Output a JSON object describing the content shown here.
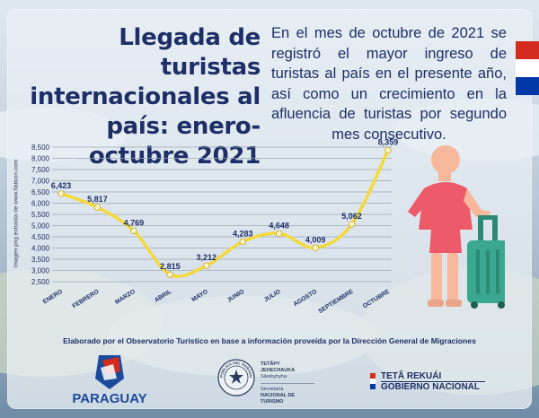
{
  "header": {
    "title": "Llegada de turistas internacionales al país: enero-octubre 2021",
    "description": "En el mes de octubre de 2021 se registró el mayor ingreso de turistas al país en el presente año, así como un crecimiento en la afluencia de turistas por segundo mes consecutivo."
  },
  "image_credit": "Imagen png extraída de www.flaticon.com",
  "chart_data": {
    "type": "line",
    "categories": [
      "ENERO",
      "FEBRERO",
      "MARZO",
      "ABRIL",
      "MAYO",
      "JUNIO",
      "JULIO",
      "AGOSTO",
      "SEPTIEMBRE",
      "OCTUBRE"
    ],
    "values": [
      6423,
      5817,
      4769,
      2815,
      3212,
      4283,
      4648,
      4009,
      5062,
      8359
    ],
    "value_labels": [
      "6,423",
      "5,817",
      "4,769",
      "2,815",
      "3,212",
      "4,283",
      "4,648",
      "4,009",
      "5,062",
      "8,359"
    ],
    "y_ticks": [
      2500,
      3000,
      3500,
      4000,
      4500,
      5000,
      5500,
      6000,
      6500,
      7000,
      7500,
      8000,
      8500
    ],
    "y_tick_labels": [
      "2,500",
      "3,000",
      "3,500",
      "4,000",
      "4,500",
      "5,000",
      "5,500",
      "6,000",
      "6,500",
      "7,000",
      "7,500",
      "8,000",
      "8,500"
    ],
    "ylim": [
      2500,
      8500
    ],
    "grid": true,
    "line_color": "#f4d93a",
    "marker_color": "#fbf3c0",
    "title": "",
    "xlabel": "",
    "ylabel": ""
  },
  "footer": {
    "source": "Elaborado por el Observatorio Turístico en base a información proveída por la Dirección General de Migraciones",
    "paraguay_logo": "PARAGUAY",
    "seal_text": "REPÚBLICA DEL PARAGUAY",
    "senatur": [
      "TETÃPY",
      "JEHECHAUKA",
      "Sãmbyhyha",
      "Secretaría",
      "NACIONAL DE",
      "TURISMO"
    ],
    "gobierno_line1": "TETÃ REKUÁI",
    "gobierno_line2": "GOBIERNO NACIONAL"
  },
  "colors": {
    "title": "#1d2f66",
    "flag_red": "#d52b1e",
    "flag_white": "#ffffff",
    "flag_blue": "#0038a8",
    "tourist_skin": "#f7b79b",
    "tourist_shirt": "#ec5a6a",
    "suitcase": "#3aa890"
  },
  "icons": [
    "tourist-woman-icon",
    "suitcase-icon",
    "paraguay-flag-icon",
    "paraguay-logo-icon",
    "national-seal-icon"
  ]
}
